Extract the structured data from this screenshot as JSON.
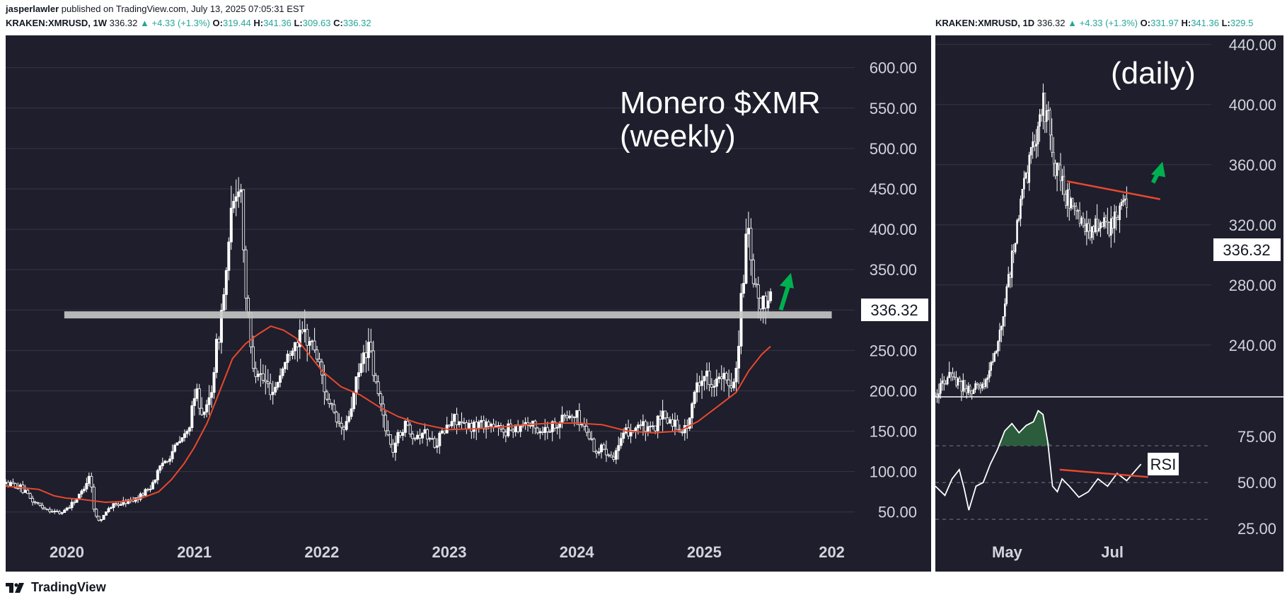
{
  "header": {
    "author": "jasperlawler",
    "published": "published on TradingView.com, July 13, 2025 07:05:31 EST"
  },
  "colors": {
    "panel_bg": "#1e1e2d",
    "candle": "#ffffff",
    "ma": "#e8492b",
    "trendline": "#e8492b",
    "arrow": "#00b050",
    "resistance": "#c8c8c8",
    "grid": "#353545",
    "axis_text": "#d1d4dc",
    "rsi_line": "#ffffff",
    "rsi_fill": "#2e6b3e",
    "up": "#26a69a"
  },
  "weekly": {
    "symbol": "KRAKEN:XMRUSD, 1W",
    "last": "336.32",
    "change": "▲ +4.33 (+1.3%)",
    "ohlc": [
      {
        "k": "O:",
        "v": "319.44"
      },
      {
        "k": "H:",
        "v": "341.36"
      },
      {
        "k": "L:",
        "v": "309.63"
      },
      {
        "k": "C:",
        "v": "336.32"
      }
    ],
    "annotation_title": "Monero $XMR",
    "annotation_sub": "(weekly)",
    "price_label": "336.32"
  },
  "daily": {
    "symbol": "KRAKEN:XMRUSD, 1D",
    "last": "336.32",
    "change": "▲ +4.33 (+1.3%)",
    "ohlc": [
      {
        "k": "O:",
        "v": "331.97"
      },
      {
        "k": "H:",
        "v": "341.36"
      },
      {
        "k": "L:",
        "v": "329.5"
      }
    ],
    "annotation": "(daily)",
    "price_label": "336.32",
    "rsi_label": "RSI"
  },
  "brand": "TradingView",
  "chart_data": [
    {
      "type": "candlestick",
      "title": "Monero $XMR (weekly)",
      "ylim": [
        20,
        640
      ],
      "yticks": [
        50,
        100,
        150,
        200,
        250,
        300,
        350,
        400,
        450,
        500,
        550,
        600
      ],
      "xticks": [
        {
          "label": "2020",
          "t": 2020.0
        },
        {
          "label": "2021",
          "t": 2021.0
        },
        {
          "label": "2022",
          "t": 2022.0
        },
        {
          "label": "2023",
          "t": 2023.0
        },
        {
          "label": "2024",
          "t": 2024.0
        },
        {
          "label": "2025",
          "t": 2025.0
        },
        {
          "label": "202",
          "t": 2026.0
        }
      ],
      "xlim": [
        2019.52,
        2026.18
      ],
      "resistance": {
        "y": 294,
        "t": [
          2019.98,
          2026.0
        ]
      },
      "price_path": [
        [
          2019.52,
          85
        ],
        [
          2019.62,
          82
        ],
        [
          2019.72,
          65
        ],
        [
          2019.82,
          55
        ],
        [
          2019.95,
          48
        ],
        [
          2020.05,
          62
        ],
        [
          2020.12,
          75
        ],
        [
          2020.18,
          98
        ],
        [
          2020.22,
          45
        ],
        [
          2020.27,
          40
        ],
        [
          2020.32,
          55
        ],
        [
          2020.45,
          62
        ],
        [
          2020.55,
          67
        ],
        [
          2020.65,
          80
        ],
        [
          2020.75,
          110
        ],
        [
          2020.85,
          130
        ],
        [
          2020.95,
          150
        ],
        [
          2021.02,
          200
        ],
        [
          2021.08,
          165
        ],
        [
          2021.13,
          200
        ],
        [
          2021.2,
          280
        ],
        [
          2021.25,
          345
        ],
        [
          2021.3,
          425
        ],
        [
          2021.36,
          470
        ],
        [
          2021.4,
          330
        ],
        [
          2021.45,
          240
        ],
        [
          2021.55,
          210
        ],
        [
          2021.62,
          200
        ],
        [
          2021.7,
          230
        ],
        [
          2021.78,
          260
        ],
        [
          2021.86,
          270
        ],
        [
          2021.94,
          255
        ],
        [
          2022.0,
          220
        ],
        [
          2022.05,
          185
        ],
        [
          2022.12,
          160
        ],
        [
          2022.18,
          150
        ],
        [
          2022.26,
          200
        ],
        [
          2022.32,
          240
        ],
        [
          2022.36,
          260
        ],
        [
          2022.42,
          210
        ],
        [
          2022.48,
          170
        ],
        [
          2022.55,
          125
        ],
        [
          2022.6,
          145
        ],
        [
          2022.66,
          160
        ],
        [
          2022.72,
          145
        ],
        [
          2022.8,
          150
        ],
        [
          2022.88,
          135
        ],
        [
          2022.96,
          150
        ],
        [
          2023.05,
          168
        ],
        [
          2023.12,
          152
        ],
        [
          2023.2,
          158
        ],
        [
          2023.3,
          160
        ],
        [
          2023.4,
          150
        ],
        [
          2023.5,
          155
        ],
        [
          2023.6,
          162
        ],
        [
          2023.7,
          150
        ],
        [
          2023.8,
          155
        ],
        [
          2023.9,
          168
        ],
        [
          2024.0,
          168
        ],
        [
          2024.08,
          150
        ],
        [
          2024.15,
          125
        ],
        [
          2024.22,
          130
        ],
        [
          2024.28,
          118
        ],
        [
          2024.34,
          135
        ],
        [
          2024.4,
          150
        ],
        [
          2024.48,
          158
        ],
        [
          2024.58,
          150
        ],
        [
          2024.68,
          168
        ],
        [
          2024.76,
          160
        ],
        [
          2024.84,
          150
        ],
        [
          2024.9,
          172
        ],
        [
          2024.94,
          210
        ],
        [
          2025.0,
          220
        ],
        [
          2025.08,
          210
        ],
        [
          2025.14,
          215
        ],
        [
          2025.2,
          205
        ],
        [
          2025.25,
          225
        ],
        [
          2025.3,
          330
        ],
        [
          2025.34,
          400
        ],
        [
          2025.38,
          330
        ],
        [
          2025.42,
          310
        ],
        [
          2025.46,
          300
        ],
        [
          2025.5,
          320
        ],
        [
          2025.53,
          336.32
        ]
      ],
      "ma": [
        [
          2019.52,
          82
        ],
        [
          2019.65,
          80
        ],
        [
          2019.78,
          78
        ],
        [
          2019.9,
          70
        ],
        [
          2020.0,
          67
        ],
        [
          2020.1,
          66
        ],
        [
          2020.2,
          64
        ],
        [
          2020.3,
          62
        ],
        [
          2020.45,
          63
        ],
        [
          2020.6,
          68
        ],
        [
          2020.72,
          75
        ],
        [
          2020.82,
          90
        ],
        [
          2020.92,
          110
        ],
        [
          2021.0,
          130
        ],
        [
          2021.1,
          160
        ],
        [
          2021.2,
          200
        ],
        [
          2021.3,
          240
        ],
        [
          2021.4,
          258
        ],
        [
          2021.5,
          270
        ],
        [
          2021.6,
          280
        ],
        [
          2021.7,
          275
        ],
        [
          2021.8,
          265
        ],
        [
          2021.9,
          245
        ],
        [
          2022.0,
          225
        ],
        [
          2022.15,
          205
        ],
        [
          2022.3,
          195
        ],
        [
          2022.45,
          180
        ],
        [
          2022.6,
          168
        ],
        [
          2022.75,
          160
        ],
        [
          2022.9,
          155
        ],
        [
          2023.0,
          152
        ],
        [
          2023.2,
          153
        ],
        [
          2023.4,
          155
        ],
        [
          2023.6,
          158
        ],
        [
          2023.8,
          160
        ],
        [
          2024.0,
          160
        ],
        [
          2024.2,
          158
        ],
        [
          2024.4,
          150
        ],
        [
          2024.6,
          148
        ],
        [
          2024.8,
          150
        ],
        [
          2024.95,
          162
        ],
        [
          2025.1,
          180
        ],
        [
          2025.25,
          198
        ],
        [
          2025.35,
          225
        ],
        [
          2025.45,
          245
        ],
        [
          2025.52,
          255
        ]
      ],
      "arrow": {
        "from": [
          2025.6,
          300
        ],
        "to": [
          2025.68,
          346
        ]
      }
    },
    {
      "type": "candlestick",
      "title": "(daily)",
      "ylim": [
        206,
        446
      ],
      "yticks": [
        240,
        280,
        320,
        360,
        400,
        440
      ],
      "xticks": [
        {
          "label": "May",
          "t": 0.3
        },
        {
          "label": "Jul",
          "t": 0.74
        }
      ],
      "xlim": [
        0,
        1
      ],
      "price_path": [
        [
          0.0,
          208
        ],
        [
          0.04,
          214
        ],
        [
          0.07,
          220
        ],
        [
          0.1,
          216
        ],
        [
          0.14,
          210
        ],
        [
          0.18,
          212
        ],
        [
          0.22,
          220
        ],
        [
          0.26,
          240
        ],
        [
          0.3,
          280
        ],
        [
          0.33,
          305
        ],
        [
          0.36,
          340
        ],
        [
          0.39,
          360
        ],
        [
          0.42,
          378
        ],
        [
          0.45,
          400
        ],
        [
          0.48,
          385
        ],
        [
          0.5,
          360
        ],
        [
          0.53,
          348
        ],
        [
          0.56,
          335
        ],
        [
          0.6,
          325
        ],
        [
          0.64,
          315
        ],
        [
          0.68,
          322
        ],
        [
          0.72,
          318
        ],
        [
          0.76,
          325
        ],
        [
          0.78,
          330
        ],
        [
          0.8,
          336.32
        ]
      ],
      "trendline": {
        "from": [
          0.55,
          349
        ],
        "to": [
          0.94,
          337
        ]
      },
      "arrow": {
        "from": [
          0.91,
          348
        ],
        "to": [
          0.95,
          362
        ]
      }
    },
    {
      "type": "line",
      "title": "RSI",
      "ylim": [
        22,
        95
      ],
      "yticks": [
        25,
        50,
        75
      ],
      "xlim": [
        0,
        1
      ],
      "overbought": 70,
      "mid": 50,
      "oversold": 30,
      "values": [
        [
          0.0,
          48
        ],
        [
          0.04,
          43
        ],
        [
          0.07,
          52
        ],
        [
          0.1,
          57
        ],
        [
          0.12,
          47
        ],
        [
          0.14,
          35
        ],
        [
          0.17,
          48
        ],
        [
          0.2,
          50
        ],
        [
          0.23,
          60
        ],
        [
          0.26,
          68
        ],
        [
          0.29,
          78
        ],
        [
          0.32,
          82
        ],
        [
          0.35,
          77
        ],
        [
          0.38,
          81
        ],
        [
          0.41,
          83
        ],
        [
          0.43,
          89
        ],
        [
          0.45,
          87
        ],
        [
          0.47,
          72
        ],
        [
          0.49,
          48
        ],
        [
          0.51,
          45
        ],
        [
          0.53,
          52
        ],
        [
          0.56,
          48
        ],
        [
          0.6,
          42
        ],
        [
          0.64,
          45
        ],
        [
          0.68,
          52
        ],
        [
          0.72,
          48
        ],
        [
          0.76,
          55
        ],
        [
          0.8,
          51
        ],
        [
          0.84,
          57
        ],
        [
          0.86,
          60
        ]
      ],
      "trendline": {
        "from": [
          0.52,
          57
        ],
        "to": [
          0.89,
          53
        ]
      }
    }
  ]
}
